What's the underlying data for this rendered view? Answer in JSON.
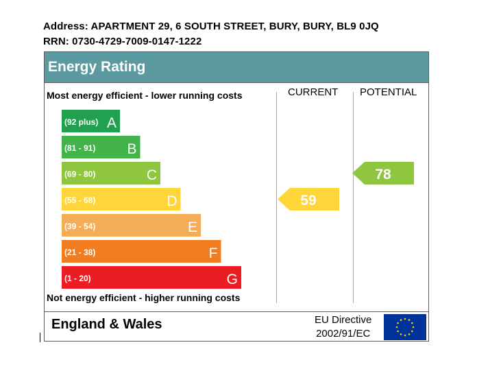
{
  "header": {
    "address": "Address: APARTMENT 29, 6 SOUTH STREET, BURY, BURY, BL9 0JQ",
    "rrn": "RRN: 0730-4729-7009-0147-1222"
  },
  "title": "Energy Rating",
  "top_note": "Most energy efficient - lower running costs",
  "bottom_note": "Not energy efficient - higher running costs",
  "footer": {
    "country": "England & Wales",
    "directive_line1": "EU Directive",
    "directive_line2": "2002/91/EC"
  },
  "chart_data": {
    "type": "bar",
    "columns": [
      "CURRENT",
      "POTENTIAL"
    ],
    "bands": [
      {
        "range": "(92 plus)",
        "letter": "A",
        "color": "#21a150"
      },
      {
        "range": "(81 - 91)",
        "letter": "B",
        "color": "#41b34a"
      },
      {
        "range": "(69 - 80)",
        "letter": "C",
        "color": "#8ec63f"
      },
      {
        "range": "(55 - 68)",
        "letter": "D",
        "color": "#ffd53a"
      },
      {
        "range": "(39 - 54)",
        "letter": "E",
        "color": "#f4ac57"
      },
      {
        "range": "(21 - 38)",
        "letter": "F",
        "color": "#f07d22"
      },
      {
        "range": "(1 - 20)",
        "letter": "G",
        "color": "#ec1c24"
      }
    ],
    "current": {
      "value": 59,
      "band": "D",
      "color": "#ffd53a"
    },
    "potential": {
      "value": 78,
      "band": "C",
      "color": "#8ec63f"
    }
  }
}
